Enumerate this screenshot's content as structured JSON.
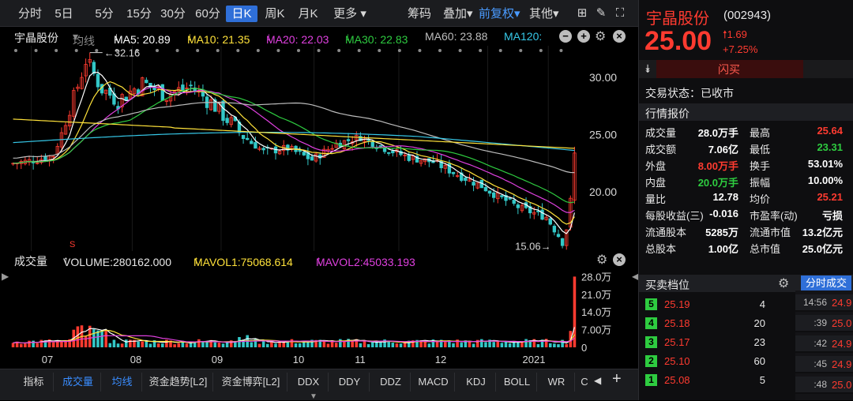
{
  "toolbar": {
    "periods": [
      "分时",
      "5日",
      "5分",
      "15分",
      "30分",
      "60分",
      "日K",
      "周K",
      "月K",
      "更多"
    ],
    "active_period": "日K",
    "chips_label": "筹码",
    "overlay_label": "叠加",
    "adjust_label": "前复权",
    "other_label": "其他"
  },
  "ma_bar": {
    "name": "宇晶股份",
    "avg_label": "均线",
    "ma5": "MA5: 20.89",
    "ma10": "MA10: 21.35",
    "ma20": "MA20: 22.03",
    "ma30": "MA30: 22.83",
    "ma60": "MA60: 23.88",
    "ma120": "MA120:"
  },
  "price_axis": [
    "30.00",
    "25.00",
    "20.00"
  ],
  "annotations": {
    "high": "32.16",
    "low": "15.06",
    "signal": "S"
  },
  "volume_bar": {
    "title": "成交量",
    "volume": "VOLUME:280162.000",
    "mavol1": "MAVOL1:75068.614",
    "mavol2": "MAVOL2:45033.193"
  },
  "volume_axis": [
    "28.0万",
    "21.0万",
    "14.0万",
    "7.00万",
    "0"
  ],
  "months": [
    "07",
    "08",
    "09",
    "10",
    "11",
    "12",
    "2021"
  ],
  "bottom_tabs": [
    "指标",
    "成交量",
    "均线",
    "资金趋势[L2]",
    "资金博弈[L2]",
    "DDX",
    "DDY",
    "DDZ",
    "MACD",
    "KDJ",
    "BOLL",
    "WR",
    "C"
  ],
  "colors": {
    "up": "#ff3b30",
    "down": "#33c8c8",
    "ma5": "#ffffff",
    "ma10": "#ffe23a",
    "ma20": "#e040e0",
    "ma30": "#2ecc40",
    "ma60": "#bdbdbd",
    "ma120": "#36c8e8",
    "accent": "#2f6fd8"
  },
  "quote": {
    "name": "宇晶股份",
    "code": "(002943)",
    "price": "25.00",
    "change": "1.69",
    "change_pct": "+7.25%",
    "flash_buy": "闪买",
    "status": "交易状态：已收市",
    "section": "行情报价",
    "rows": [
      {
        "l1": "成交量",
        "v1": "28.0万手",
        "l2": "最高",
        "v2": "25.64"
      },
      {
        "l1": "成交额",
        "v1": "7.06亿",
        "l2": "最低",
        "v2": "23.31"
      },
      {
        "l1": "外盘",
        "v1": "8.00万手",
        "l2": "换手",
        "v2": "53.01%"
      },
      {
        "l1": "内盘",
        "v1": "20.0万手",
        "l2": "振幅",
        "v2": "10.00%"
      },
      {
        "l1": "量比",
        "v1": "12.78",
        "l2": "均价",
        "v2": "25.21"
      },
      {
        "l1": "每股收益(三)",
        "v1": "-0.016",
        "l2": "市盈率(动)",
        "v2": "亏损"
      },
      {
        "l1": "流通股本",
        "v1": "5285万",
        "l2": "流通市值",
        "v2": "13.2亿元"
      },
      {
        "l1": "总股本",
        "v1": "1.00亿",
        "l2": "总市值",
        "v2": "25.0亿元"
      }
    ]
  },
  "orderbook": {
    "title": "买卖档位",
    "ts_title": "分时成交",
    "levels": [
      {
        "n": "5",
        "price": "25.19",
        "vol": "4"
      },
      {
        "n": "4",
        "price": "25.18",
        "vol": "20"
      },
      {
        "n": "3",
        "price": "25.17",
        "vol": "23"
      },
      {
        "n": "2",
        "price": "25.10",
        "vol": "60"
      },
      {
        "n": "1",
        "price": "25.08",
        "vol": "5"
      }
    ],
    "trades": [
      {
        "t": "14:56",
        "p": "24.9"
      },
      {
        "t": ":39",
        "p": "25.0"
      },
      {
        "t": ":42",
        "p": "24.9"
      },
      {
        "t": ":45",
        "p": "24.9"
      },
      {
        "t": ":48",
        "p": "25.0"
      }
    ]
  }
}
